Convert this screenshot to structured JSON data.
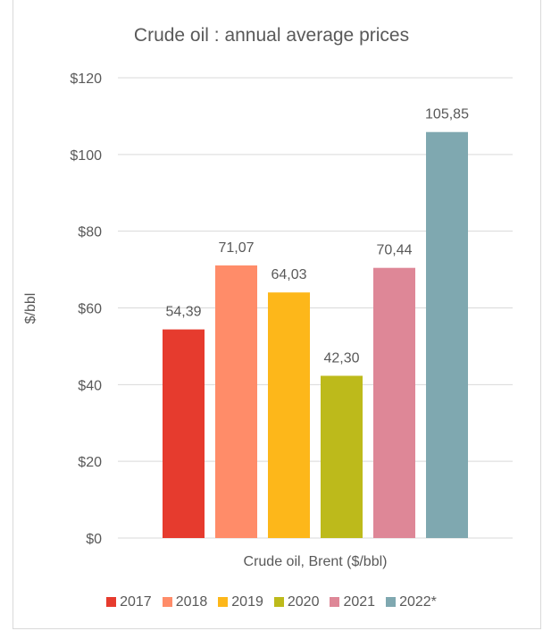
{
  "chart_data": {
    "type": "bar",
    "title": "Crude oil : annual average prices",
    "xlabel": "Crude oil, Brent ($/bbl)",
    "ylabel": "$/bbl",
    "ylim": [
      0,
      120
    ],
    "yticks": [
      0,
      20,
      40,
      60,
      80,
      100,
      120
    ],
    "ytick_labels": [
      "$0",
      "$20",
      "$40",
      "$60",
      "$80",
      "$100",
      "$120"
    ],
    "grid": true,
    "legend_position": "bottom",
    "series": [
      {
        "name": "2017",
        "value": 54.39,
        "label": "54,39",
        "color": "#E63B2E"
      },
      {
        "name": "2018",
        "value": 71.07,
        "label": "71,07",
        "color": "#FF8C69"
      },
      {
        "name": "2019",
        "value": 64.03,
        "label": "64,03",
        "color": "#FDB71A"
      },
      {
        "name": "2020",
        "value": 42.3,
        "label": "42,30",
        "color": "#BDBA1B"
      },
      {
        "name": "2021",
        "value": 70.44,
        "label": "70,44",
        "color": "#DE8797"
      },
      {
        "name": "2022*",
        "value": 105.85,
        "label": "105,85",
        "color": "#7FA8B0"
      }
    ]
  }
}
